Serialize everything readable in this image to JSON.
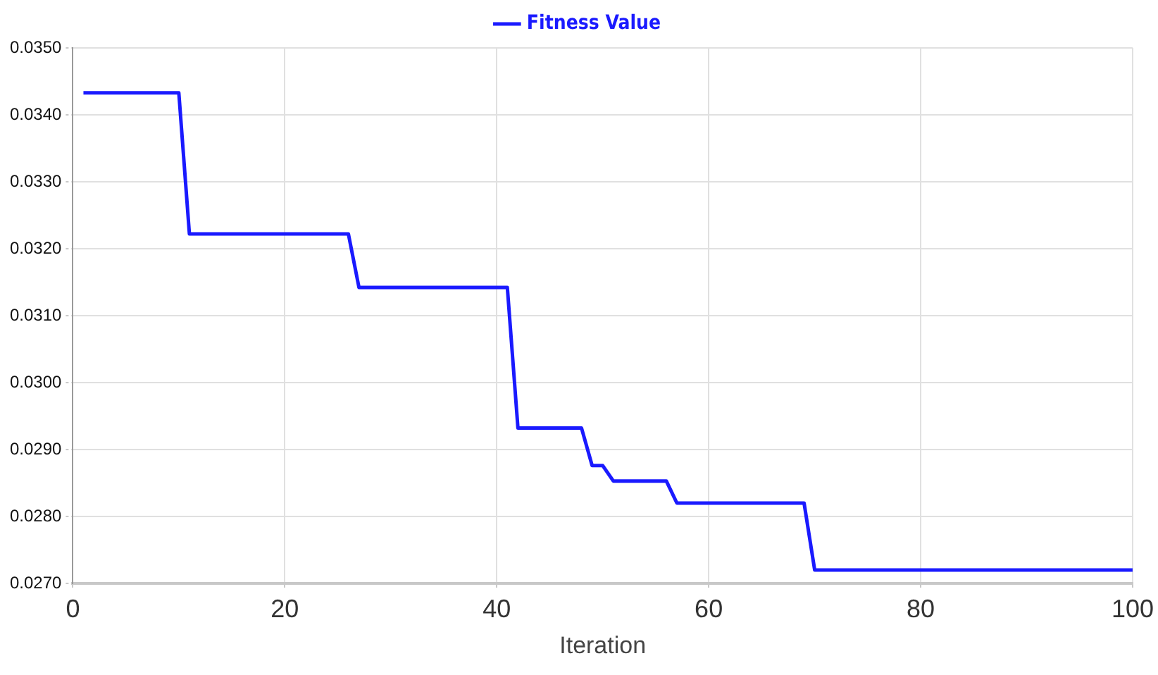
{
  "chart_data": {
    "type": "line",
    "xlabel": "Iteration",
    "x": [
      1,
      10,
      11,
      26,
      27,
      41,
      42,
      48,
      49,
      50,
      51,
      56,
      57,
      69,
      70,
      100
    ],
    "series": [
      {
        "name": "Fitness Value",
        "color": "#1a1aff",
        "values": [
          0.03433,
          0.03433,
          0.03222,
          0.03222,
          0.03142,
          0.03142,
          0.02932,
          0.02932,
          0.02876,
          0.02876,
          0.02853,
          0.02853,
          0.0282,
          0.0282,
          0.0272,
          0.0272
        ]
      }
    ],
    "xlim": [
      0,
      100
    ],
    "xticks": [
      0,
      20,
      40,
      60,
      80,
      100
    ],
    "ylim": [
      0.027,
      0.035
    ],
    "yticks": [
      {
        "value": 0.027,
        "label": "0.0270"
      },
      {
        "value": 0.028,
        "label": "0.0280"
      },
      {
        "value": 0.029,
        "label": "0.0290"
      },
      {
        "value": 0.03,
        "label": "0.0300"
      },
      {
        "value": 0.031,
        "label": "0.0310"
      },
      {
        "value": 0.032,
        "label": "0.0320"
      },
      {
        "value": 0.033,
        "label": "0.0330"
      },
      {
        "value": 0.034,
        "label": "0.0340"
      },
      {
        "value": 0.035,
        "label": "0.0350"
      }
    ],
    "grid": true,
    "legend": "top",
    "marker": "none",
    "line_style": "solid"
  }
}
